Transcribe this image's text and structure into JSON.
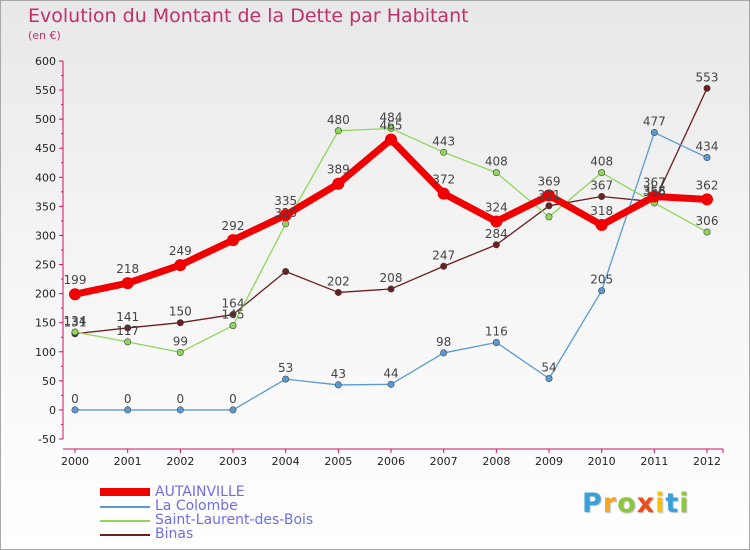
{
  "chart_data": {
    "type": "line",
    "title": "Evolution du Montant de la Dette par Habitant",
    "unit_label": "(en €)",
    "x": [
      "2000",
      "2001",
      "2002",
      "2003",
      "2004",
      "2005",
      "2006",
      "2007",
      "2008",
      "2009",
      "2010",
      "2011",
      "2012"
    ],
    "ylim": [
      -50,
      600
    ],
    "yticks": [
      -50,
      0,
      50,
      100,
      150,
      200,
      250,
      300,
      350,
      400,
      450,
      500,
      550,
      600
    ],
    "grid": false,
    "legend_position": "bottom-left",
    "series": [
      {
        "name": "Binas",
        "color": "#6b1f1f",
        "values": [
          131,
          141,
          150,
          164,
          238,
          202,
          208,
          247,
          284,
          351,
          367,
          358,
          553
        ]
      },
      {
        "name": "Saint-Laurent-des-Bois",
        "color": "#8ed65a",
        "values": [
          134,
          117,
          99,
          145,
          320,
          480,
          484,
          443,
          408,
          332,
          408,
          356,
          306
        ]
      },
      {
        "name": "La Colombe",
        "color": "#5b9bd5",
        "values": [
          0,
          0,
          0,
          0,
          53,
          43,
          44,
          98,
          116,
          54,
          205,
          477,
          434
        ]
      },
      {
        "name": "AUTAINVILLE",
        "color": "#f00000",
        "values": [
          199,
          218,
          249,
          292,
          335,
          389,
          465,
          372,
          324,
          369,
          318,
          367,
          362
        ]
      }
    ],
    "data_labels": [
      [
        "131",
        "141",
        "150",
        "164",
        "",
        "202",
        "208",
        "247",
        "284",
        "351",
        "367",
        "358",
        "553"
      ],
      [
        "134",
        "117",
        "99",
        "145",
        "320",
        "480",
        "484",
        "443",
        "408",
        "",
        "408",
        "356",
        "306"
      ],
      [
        "0",
        "0",
        "0",
        "0",
        "53",
        "43",
        "44",
        "98",
        "116",
        "54",
        "205",
        "477",
        "434"
      ],
      [
        "199",
        "218",
        "249",
        "292",
        "335",
        "389",
        "465",
        "372",
        "324",
        "369",
        "318",
        "367",
        "362"
      ]
    ],
    "legend_order": [
      "AUTAINVILLE",
      "La Colombe",
      "Saint-Laurent-des-Bois",
      "Binas"
    ]
  },
  "brand": {
    "letters": [
      "P",
      "r",
      "o",
      "x",
      "i",
      "t",
      "i"
    ],
    "colors": [
      "#3aa0d8",
      "#f5a623",
      "#8cc63f",
      "#e94e1b",
      "#f5c400",
      "#3aa0d8",
      "#8cc63f"
    ]
  }
}
